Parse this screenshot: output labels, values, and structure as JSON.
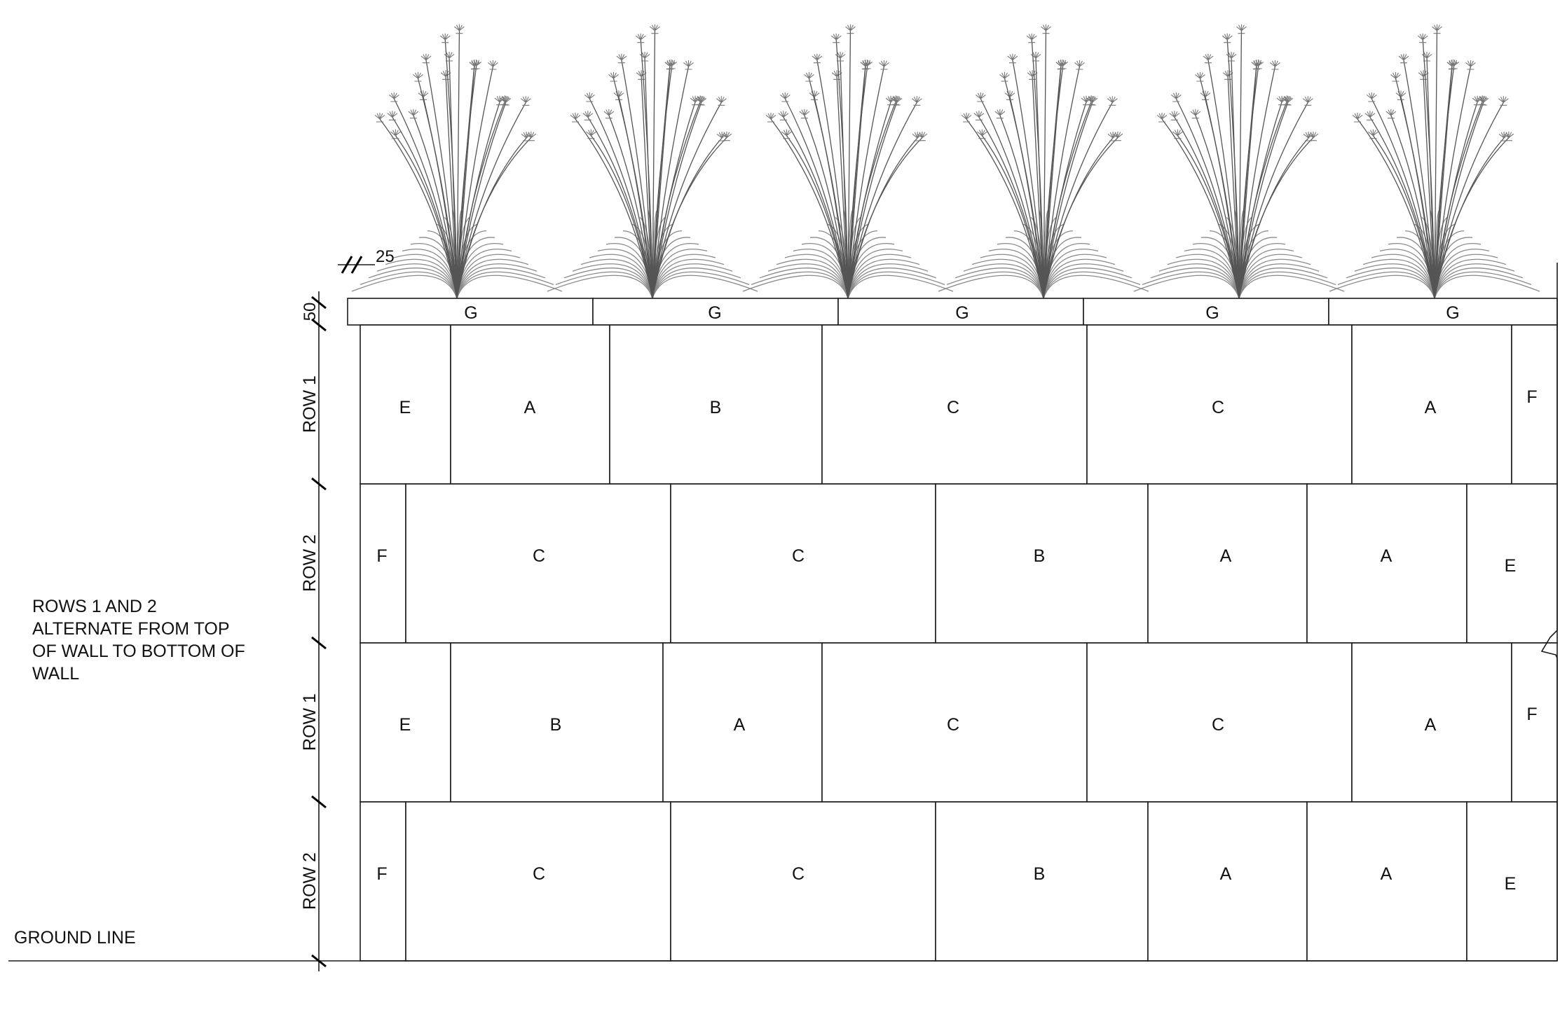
{
  "notes": {
    "alternate": [
      "ROWS 1 AND 2",
      "ALTERNATE FROM TOP",
      "OF WALL TO BOTTOM OF",
      "WALL"
    ],
    "ground_line": "GROUND LINE"
  },
  "dimensions": {
    "cap_offset": "25",
    "cap_height": "50"
  },
  "cap_row": {
    "blocks": [
      "G",
      "G",
      "G",
      "G",
      "G"
    ]
  },
  "rows": [
    {
      "label": "ROW 1",
      "blocks": [
        "E",
        "A",
        "B",
        "C",
        "C",
        "A",
        "F"
      ]
    },
    {
      "label": "ROW 2",
      "blocks": [
        "F",
        "C",
        "C",
        "B",
        "A",
        "A",
        "E"
      ]
    },
    {
      "label": "ROW 1",
      "blocks": [
        "E",
        "B",
        "A",
        "C",
        "C",
        "A",
        "F"
      ]
    },
    {
      "label": "ROW 2",
      "blocks": [
        "F",
        "C",
        "C",
        "B",
        "A",
        "A",
        "E"
      ]
    }
  ],
  "plants": {
    "count": 6,
    "icon": "ornamental-grass-icon"
  },
  "colors": {
    "line": "#1a1a1a",
    "plant": "#8a8a8a"
  }
}
